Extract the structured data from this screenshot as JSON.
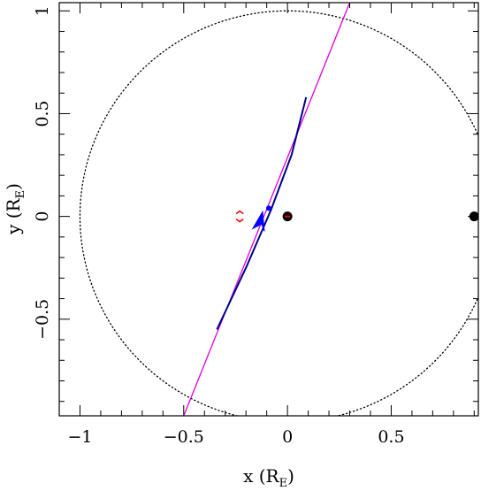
{
  "chart_data": {
    "type": "scatter",
    "title": "",
    "xlabel": {
      "main": "x (R",
      "sub": "E",
      "close": ")"
    },
    "ylabel": {
      "main": "y (R",
      "sub": "E",
      "close": ")"
    },
    "xlim": [
      -1.1,
      0.92
    ],
    "ylim": [
      -0.97,
      1.04
    ],
    "xticks_major": [
      -1,
      -0.5,
      0,
      0.5
    ],
    "xtick_labels": [
      "−1",
      "−0.5",
      "0",
      "0.5"
    ],
    "yticks_major": [
      -0.5,
      0,
      0.5,
      1
    ],
    "ytick_labels": [
      "−0.5",
      "0",
      "0.5",
      "1"
    ],
    "minor_tick_step": 0.1,
    "grid": false,
    "einstein_ring": {
      "center": [
        0,
        0
      ],
      "radius": 1.0,
      "style": "dotted",
      "color": "#000000"
    },
    "lenses": [
      {
        "name": "",
        "x": 0.0,
        "y": 0.0,
        "color": "#000000"
      },
      {
        "name": "",
        "x": 0.9,
        "y": 0.0,
        "color": "#000000"
      }
    ],
    "caustic": {
      "x": 0.0,
      "y": 0.0,
      "color": "#ff0000"
    },
    "critical_marks": {
      "x": -0.23,
      "y": 0.0,
      "color": "#ff0000"
    },
    "source_trajectory": {
      "points": [
        [
          -0.5,
          -0.97
        ],
        [
          0.3,
          1.04
        ]
      ],
      "color": "#dd00dd"
    },
    "image_track": {
      "points": [
        [
          -0.34,
          -0.55
        ],
        [
          -0.2,
          -0.25
        ],
        [
          -0.08,
          0.03
        ],
        [
          0.02,
          0.3
        ],
        [
          0.09,
          0.58
        ]
      ],
      "color": "#00008b"
    },
    "marker": {
      "x": -0.09,
      "y": 0.04,
      "color": "#0000ff"
    },
    "arrow": {
      "x": -0.12,
      "y": -0.02,
      "color": "#0000ff"
    }
  }
}
